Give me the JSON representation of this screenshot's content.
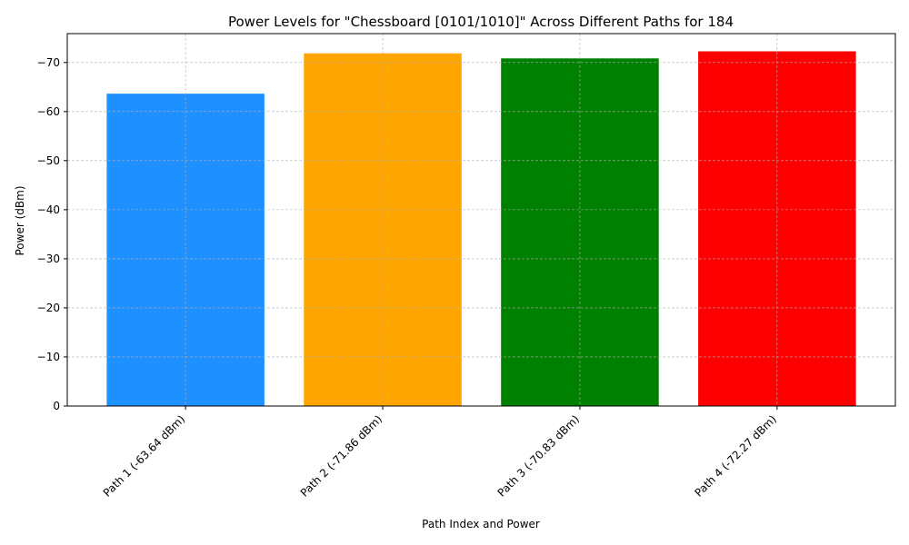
{
  "chart_data": {
    "type": "bar",
    "title": "Power Levels for \"Chessboard [0101/1010]\" Across Different Paths for 184",
    "xlabel": "Path Index and Power",
    "ylabel": "Power (dBm)",
    "categories": [
      "Path 1 (-63.64 dBm)",
      "Path 2 (-71.86 dBm)",
      "Path 3 (-70.83 dBm)",
      "Path 4 (-72.27 dBm)"
    ],
    "values": [
      -63.64,
      -71.86,
      -70.83,
      -72.27
    ],
    "colors": [
      "#1e90ff",
      "#ffa500",
      "#008000",
      "#ff0000"
    ],
    "ylim": [
      0,
      -75.88
    ],
    "yaxis_inverted": true,
    "yticks": [
      0,
      -10,
      -20,
      -30,
      -40,
      -50,
      -60,
      -70
    ],
    "ytick_labels": [
      "0",
      "−10",
      "−20",
      "−30",
      "−40",
      "−50",
      "−60",
      "−70"
    ],
    "grid": true
  }
}
